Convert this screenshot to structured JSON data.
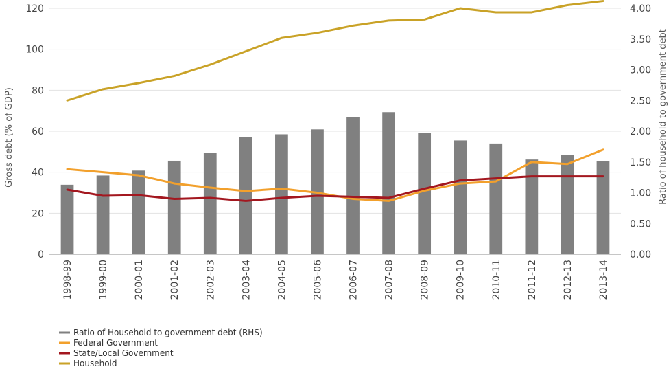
{
  "chart_data": {
    "type": "bar",
    "title": "",
    "xlabel": "",
    "ylabel": "Gross debt (% of GDP)",
    "y2label": "Ratio of household to government debt",
    "ylim": [
      0,
      120
    ],
    "y2lim": [
      0,
      4
    ],
    "yticks": [
      "0",
      "20",
      "40",
      "60",
      "80",
      "100",
      "120"
    ],
    "y2ticks": [
      "0.00",
      "0.50",
      "1.00",
      "1.50",
      "2.00",
      "2.50",
      "3.00",
      "3.50",
      "4.00"
    ],
    "grid": true,
    "legend_position": "bottom-left",
    "categories": [
      "1998-99",
      "1999-00",
      "2000-01",
      "2001-02",
      "2002-03",
      "2003-04",
      "2004-05",
      "2005-06",
      "2006-07",
      "2007-08",
      "2008-09",
      "2009-10",
      "2010-11",
      "2011-12",
      "2012-13",
      "2013-14"
    ],
    "series": [
      {
        "name": "Ratio of Household to government debt (RHS)",
        "type": "bar",
        "axis": "right",
        "color": "#808080",
        "values": [
          1.13,
          1.28,
          1.36,
          1.52,
          1.65,
          1.91,
          1.95,
          2.03,
          2.23,
          2.31,
          1.97,
          1.85,
          1.8,
          1.54,
          1.62,
          1.51
        ]
      },
      {
        "name": "Federal Government",
        "type": "line",
        "axis": "left",
        "color": "#f2a02c",
        "values": [
          41.5,
          40,
          38.5,
          34.5,
          32.5,
          30.8,
          32,
          30,
          27,
          26,
          31,
          34.5,
          35.5,
          45,
          44,
          51
        ]
      },
      {
        "name": "State/Local Government",
        "type": "line",
        "axis": "left",
        "color": "#a3171f",
        "values": [
          31.5,
          28.5,
          28.8,
          27,
          27.5,
          26,
          27.5,
          28.5,
          28,
          27.5,
          32,
          36,
          37,
          38,
          38,
          38
        ]
      },
      {
        "name": "Household",
        "type": "line",
        "axis": "left",
        "color": "#c9a227",
        "values": [
          75,
          80.5,
          83.5,
          87,
          92.5,
          99,
          105.5,
          108,
          111.5,
          114,
          114.5,
          120,
          118,
          118,
          121.5,
          123.5
        ]
      }
    ]
  }
}
